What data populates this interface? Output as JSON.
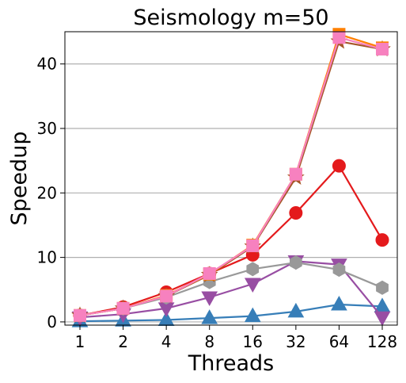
{
  "chart_data": {
    "type": "line",
    "title": "Seismology m=50",
    "xlabel": "Threads",
    "ylabel": "Speedup",
    "categories": [
      "1",
      "2",
      "4",
      "8",
      "16",
      "32",
      "64",
      "128"
    ],
    "ylim": [
      -0.5,
      45
    ],
    "yticks": [
      0,
      10,
      20,
      30,
      40
    ],
    "grid": "y",
    "series": [
      {
        "color": "#e41a1c",
        "marker": "circle",
        "values": [
          1.0,
          2.3,
          4.6,
          7.5,
          10.4,
          16.9,
          24.2,
          12.7
        ]
      },
      {
        "color": "#377eb8",
        "marker": "triangle-up",
        "values": [
          0.1,
          0.2,
          0.3,
          0.6,
          0.9,
          1.6,
          2.7,
          2.4
        ]
      },
      {
        "color": "#984ea3",
        "marker": "triangle-down",
        "values": [
          0.7,
          1.2,
          2.1,
          3.8,
          5.9,
          9.4,
          8.9,
          0.7
        ]
      },
      {
        "color": "#999999",
        "marker": "hexagon",
        "values": [
          1.0,
          2.1,
          3.8,
          6.2,
          8.2,
          9.2,
          8.1,
          5.3
        ]
      },
      {
        "color": "#a65628",
        "marker": "star",
        "values": [
          1.0,
          2.1,
          4.0,
          7.3,
          11.7,
          22.4,
          43.5,
          42.3
        ]
      },
      {
        "color": "#ff7f00",
        "marker": "square",
        "values": [
          1.0,
          2.1,
          4.1,
          7.4,
          11.9,
          22.9,
          44.6,
          42.5
        ]
      },
      {
        "color": "#f781bf",
        "marker": "square",
        "values": [
          1.0,
          2.1,
          4.0,
          7.5,
          11.8,
          22.9,
          44.1,
          42.3
        ]
      }
    ]
  }
}
